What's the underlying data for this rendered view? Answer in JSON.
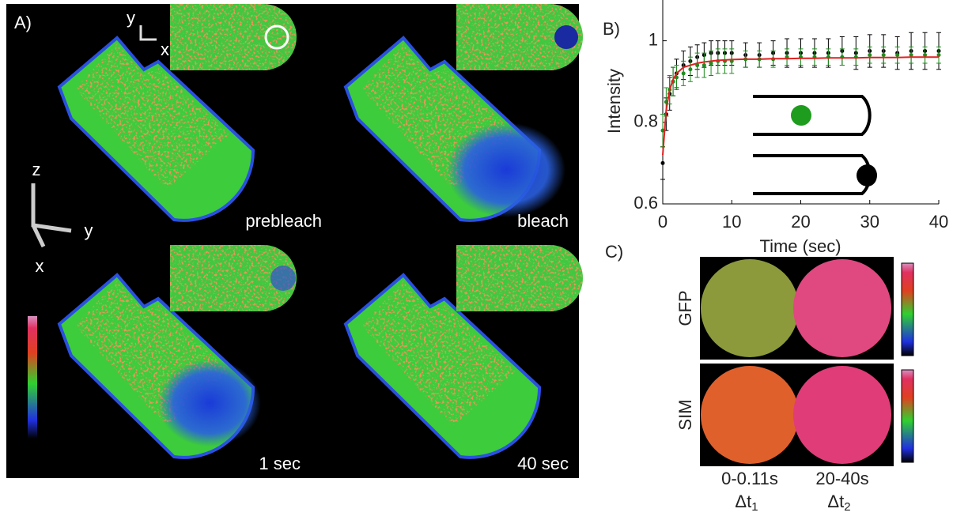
{
  "panel_a": {
    "label": "A)",
    "axes_2d": [
      "y",
      "x"
    ],
    "axes_3d": [
      "z",
      "y",
      "x"
    ],
    "states": [
      "prebleach",
      "bleach",
      "1 sec",
      "40 sec"
    ]
  },
  "chart_data": {
    "type": "line",
    "panel_label": "B)",
    "xlabel": "Time (sec)",
    "ylabel": "Intensity",
    "x": [
      0,
      0.5,
      1,
      1.5,
      2,
      3,
      4,
      5,
      6,
      7,
      8,
      9,
      10,
      12,
      14,
      16,
      18,
      20,
      22,
      24,
      26,
      28,
      30,
      32,
      34,
      36,
      38,
      40
    ],
    "series": [
      {
        "color": "#000000",
        "values": [
          0.7,
          0.82,
          0.87,
          0.9,
          0.92,
          0.94,
          0.95,
          0.96,
          0.965,
          0.97,
          0.97,
          0.97,
          0.97,
          0.965,
          0.965,
          0.97,
          0.97,
          0.97,
          0.97,
          0.97,
          0.975,
          0.97,
          0.975,
          0.975,
          0.97,
          0.975,
          0.975,
          0.975
        ],
        "errors": [
          0.04,
          0.04,
          0.04,
          0.035,
          0.035,
          0.035,
          0.035,
          0.03,
          0.03,
          0.03,
          0.03,
          0.03,
          0.03,
          0.03,
          0.03,
          0.03,
          0.035,
          0.035,
          0.035,
          0.035,
          0.035,
          0.04,
          0.04,
          0.04,
          0.04,
          0.045,
          0.045,
          0.045
        ]
      },
      {
        "color": "#1e8c1e",
        "values": [
          0.78,
          0.85,
          0.88,
          0.9,
          0.91,
          0.92,
          0.93,
          0.94,
          0.94,
          0.945,
          0.95,
          0.95,
          0.95,
          0.955,
          0.955,
          0.955,
          0.96,
          0.96,
          0.96,
          0.96,
          0.96,
          0.96,
          0.965,
          0.965,
          0.965,
          0.965,
          0.965,
          0.965
        ],
        "errors": [
          0.04,
          0.035,
          0.035,
          0.035,
          0.03,
          0.03,
          0.03,
          0.03,
          0.03,
          0.03,
          0.03,
          0.03,
          0.03,
          0.02,
          0.02,
          0.02,
          0.02,
          0.02,
          0.02,
          0.02,
          0.02,
          0.02,
          0.02,
          0.02,
          0.02,
          0.02,
          0.02,
          0.02
        ]
      },
      {
        "color": "#e02020",
        "values": [
          0.72,
          0.83,
          0.88,
          0.905,
          0.92,
          0.935,
          0.94,
          0.945,
          0.948,
          0.95,
          0.952,
          0.953,
          0.954,
          0.955,
          0.955,
          0.956,
          0.956,
          0.957,
          0.957,
          0.958,
          0.958,
          0.958,
          0.959,
          0.959,
          0.959,
          0.96,
          0.96,
          0.96
        ]
      }
    ],
    "xlim": [
      0,
      40
    ],
    "ylim": [
      0.6,
      1.1
    ],
    "xticks": [
      0,
      10,
      20,
      30,
      40
    ],
    "yticks": [
      0.6,
      0.8,
      1
    ]
  },
  "panel_c": {
    "label": "C)",
    "rows": [
      "GFP",
      "SIM"
    ],
    "columns": [
      {
        "range": "0-0.11s",
        "symbol": "Δt",
        "subscript": "1"
      },
      {
        "range": "20-40s",
        "symbol": "Δt",
        "subscript": "2"
      }
    ]
  }
}
